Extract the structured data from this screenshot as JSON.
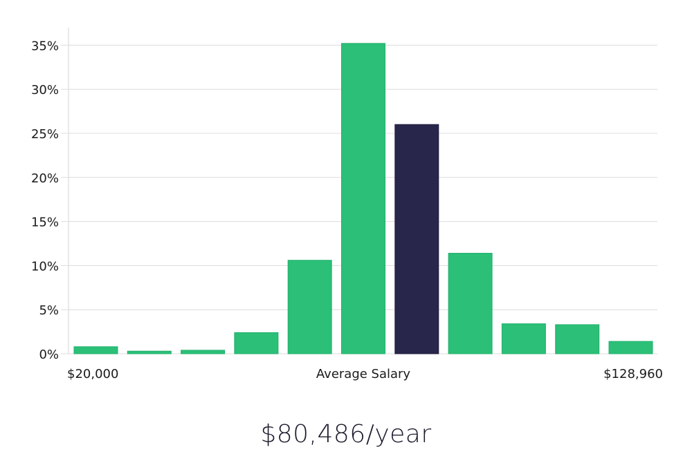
{
  "chart_data": {
    "type": "bar",
    "title": "",
    "xlabel": "Average Salary",
    "ylabel": "",
    "x_range_labels": {
      "min": "$20,000",
      "max": "$128,960"
    },
    "ylim": [
      0,
      0.37
    ],
    "yticks": [
      0,
      0.05,
      0.1,
      0.15,
      0.2,
      0.25,
      0.3,
      0.35
    ],
    "ytick_labels": [
      "0%",
      "5%",
      "10%",
      "15%",
      "20%",
      "25%",
      "30%",
      "35%"
    ],
    "values": [
      0.008,
      0.003,
      0.004,
      0.024,
      0.106,
      0.352,
      0.26,
      0.114,
      0.034,
      0.033,
      0.014
    ],
    "highlight_index": 6,
    "bar_color": "#2bbf78",
    "highlight_color": "#28264a",
    "grid": true
  },
  "summary": {
    "salary_text": "$80,486/year"
  }
}
